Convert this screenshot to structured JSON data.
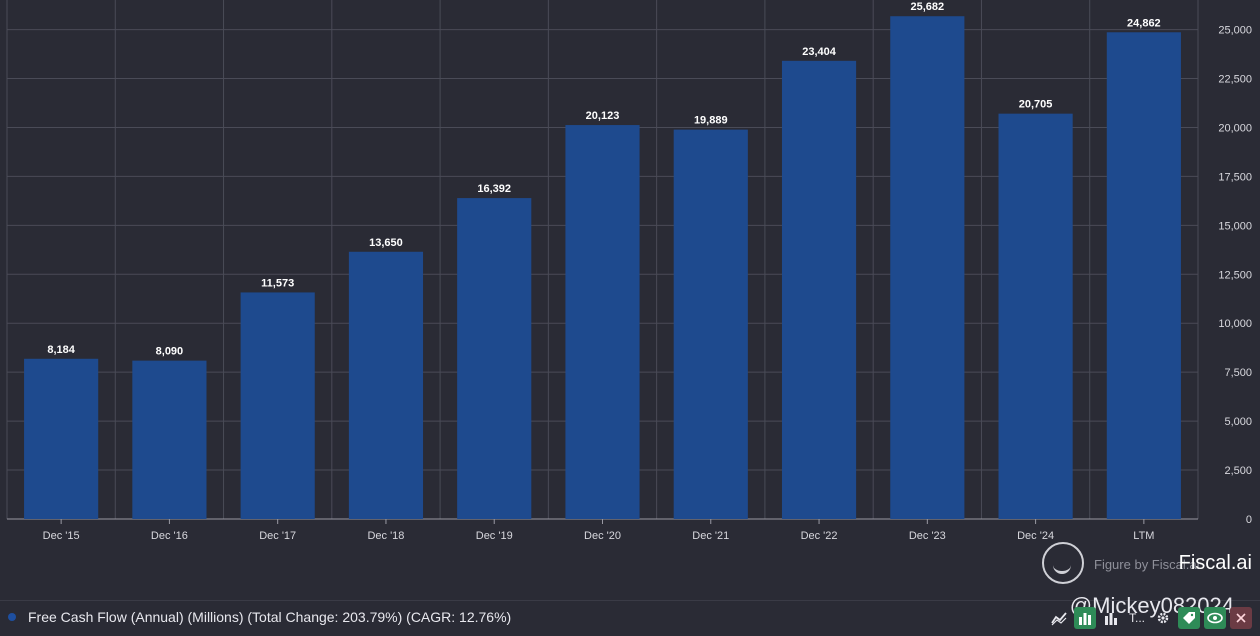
{
  "chart_data": {
    "type": "bar",
    "categories": [
      "Dec '15",
      "Dec '16",
      "Dec '17",
      "Dec '18",
      "Dec '19",
      "Dec '20",
      "Dec '21",
      "Dec '22",
      "Dec '23",
      "Dec '24",
      "LTM"
    ],
    "values": [
      8184,
      8090,
      11573,
      13650,
      16392,
      20123,
      19889,
      23404,
      25682,
      20705,
      24862
    ],
    "value_labels": [
      "8,184",
      "8,090",
      "11,573",
      "13,650",
      "16,392",
      "20,123",
      "19,889",
      "23,404",
      "25,682",
      "20,705",
      "24,862"
    ],
    "ylim": [
      0,
      26000
    ],
    "yticks": [
      0,
      2500,
      5000,
      7500,
      10000,
      12500,
      15000,
      17500,
      20000,
      22500,
      25000
    ],
    "ytick_labels": [
      "0",
      "2,500",
      "5,000",
      "7,500",
      "10,000",
      "12,500",
      "15,000",
      "17,500",
      "20,000",
      "22,500",
      "25,000"
    ],
    "y_axis_side": "right",
    "grid": true,
    "bar_color": "#1e4a8e",
    "background_color": "#2a2b35"
  },
  "legend": {
    "text": "Free Cash Flow (Annual) (Millions) (Total Change: 203.79%) (CAGR: 12.76%)",
    "color": "#1e4fa0"
  },
  "branding": {
    "watermark_small": "Figure by Fiscal.ai",
    "brand_name": "Fiscal.ai",
    "handle": "@Mickey082024"
  },
  "toolbar": {
    "icons": [
      "line-chart-icon",
      "bar-chart-icon",
      "bar-chart-alt-icon",
      "text-icon",
      "gear-icon",
      "tag-icon",
      "eye-icon",
      "close-icon"
    ],
    "text_button_label": "T..."
  }
}
